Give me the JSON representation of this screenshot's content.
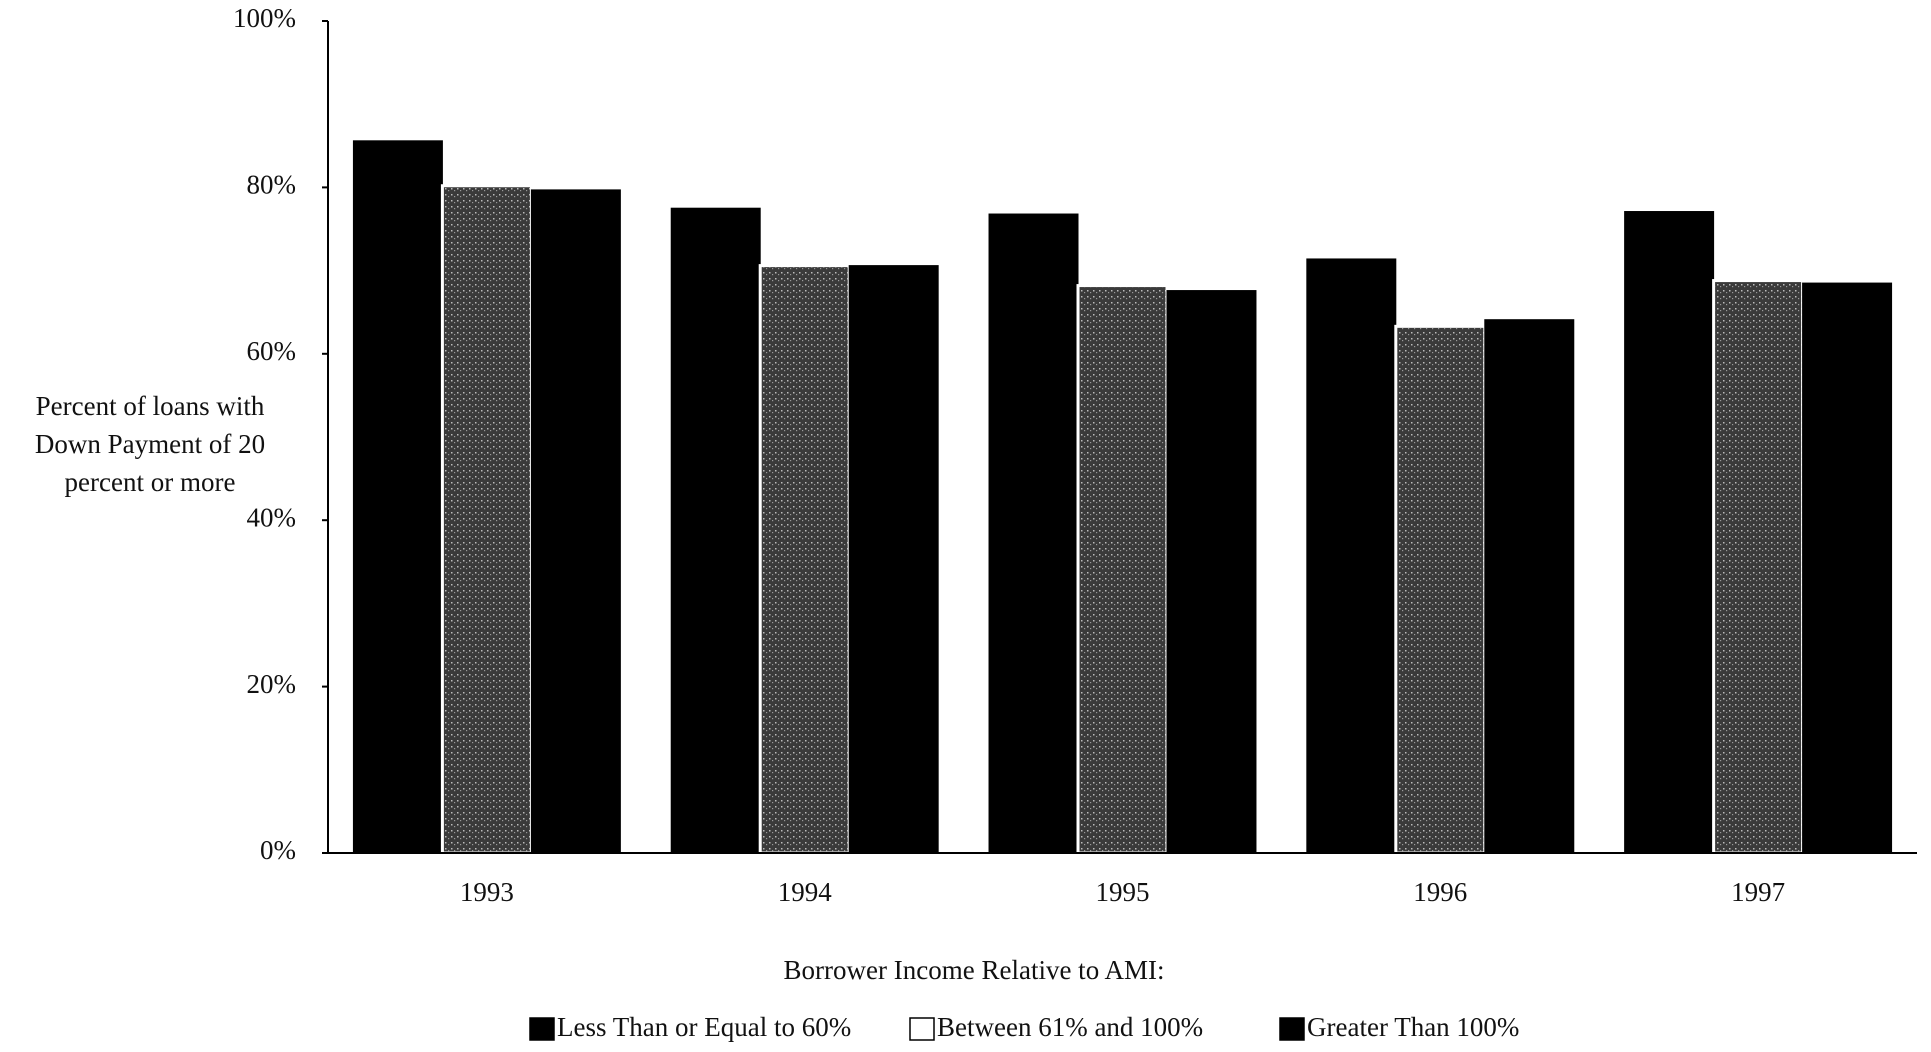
{
  "chart_data": {
    "type": "bar",
    "y_label": [
      "Percent of loans with",
      "Down Payment of 20",
      "percent or more"
    ],
    "x_label": "Borrower Income Relative to AMI:",
    "categories": [
      "1993",
      "1994",
      "1995",
      "1996",
      "1997"
    ],
    "series": [
      {
        "name": "Less Than or Equal to 60%",
        "color": "#000000",
        "values": [
          85.6,
          77.5,
          76.8,
          71.4,
          77.1
        ]
      },
      {
        "name": "Between 61% and 100%",
        "color": "#ffffff",
        "values": [
          80.2,
          70.6,
          68.2,
          63.3,
          68.8
        ]
      },
      {
        "name": "Greater Than 100%",
        "color": "#000000",
        "values": [
          79.7,
          70.6,
          67.6,
          64.1,
          68.5
        ]
      }
    ],
    "ylim": [
      0,
      100
    ],
    "yticks": [
      {
        "value": 0,
        "label": "0%"
      },
      {
        "value": 20,
        "label": "20%"
      },
      {
        "value": 40,
        "label": "40%"
      },
      {
        "value": 60,
        "label": "60%"
      },
      {
        "value": 80,
        "label": "80%"
      },
      {
        "value": 100,
        "label": "100%"
      }
    ],
    "grid": false,
    "legend": "bottom"
  }
}
